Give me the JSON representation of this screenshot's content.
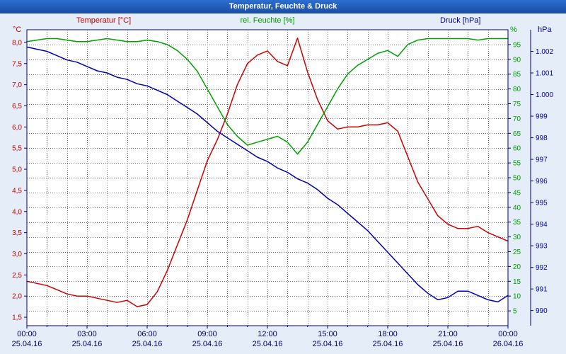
{
  "window": {
    "title": "Temperatur, Feuchte & Druck"
  },
  "legend": {
    "temperature": "Temperatur [°C]",
    "humidity": "rel. Feuchte [%]",
    "pressure": "Druck [hPa]"
  },
  "axes": {
    "temperature": {
      "unit": "°C",
      "color": "#cc0000",
      "min": 1.3,
      "max": 8.3,
      "ticks": [
        8.0,
        7.5,
        7.0,
        6.5,
        6.0,
        5.5,
        5.0,
        4.5,
        4.0,
        3.5,
        3.0,
        2.5,
        2.0,
        1.5
      ],
      "tick_labels": [
        "8,0",
        "7,5",
        "7,0",
        "6,5",
        "6,0",
        "5,5",
        "5,0",
        "4,5",
        "4,0",
        "3,5",
        "3,0",
        "2,5",
        "2,0",
        "1,5"
      ]
    },
    "humidity": {
      "unit": "%",
      "color": "#00a000",
      "min": 0,
      "max": 100,
      "ticks": [
        95,
        90,
        85,
        80,
        75,
        70,
        65,
        60,
        55,
        50,
        45,
        40,
        35,
        30,
        25,
        20,
        15,
        10,
        5
      ],
      "tick_labels": [
        "95",
        "90",
        "85",
        "80",
        "75",
        "70",
        "65",
        "60",
        "55",
        "50",
        "45",
        "40",
        "35",
        "30",
        "25",
        "20",
        "15",
        "10",
        "5"
      ]
    },
    "pressure": {
      "unit": "hPa",
      "color": "#0000b0",
      "min": 989.3,
      "max": 1003.0,
      "ticks": [
        1002,
        1001,
        1000,
        999,
        998,
        997,
        996,
        995,
        994,
        993,
        992,
        991,
        990
      ],
      "tick_labels": [
        "1.002",
        "1.001",
        "1.000",
        "999",
        "998",
        "997",
        "996",
        "995",
        "994",
        "993",
        "992",
        "991",
        "990"
      ]
    },
    "x": {
      "tick_hours": [
        0,
        3,
        6,
        9,
        12,
        15,
        18,
        21,
        24
      ],
      "tick_labels": [
        "00:00",
        "03:00",
        "06:00",
        "09:00",
        "12:00",
        "15:00",
        "18:00",
        "21:00",
        "00:00"
      ],
      "dates": [
        "25.04.16",
        "25.04.16",
        "25.04.16",
        "25.04.16",
        "25.04.16",
        "25.04.16",
        "25.04.16",
        "25.04.16",
        "26.04.16"
      ]
    }
  },
  "chart_data": {
    "type": "line",
    "title": "Temperatur, Feuchte & Druck",
    "x_start_hour": 0,
    "x_step_hours": 0.5,
    "x_range_hours": [
      0,
      24
    ],
    "grid": true,
    "series": [
      {
        "name": "Temperatur",
        "unit": "°C",
        "axis": "temperature",
        "color": "#cc0000",
        "values": [
          2.35,
          2.3,
          2.25,
          2.15,
          2.05,
          2.0,
          2.0,
          1.95,
          1.9,
          1.85,
          1.9,
          1.75,
          1.8,
          2.1,
          2.6,
          3.2,
          3.8,
          4.5,
          5.2,
          5.7,
          6.3,
          7.0,
          7.5,
          7.7,
          7.8,
          7.55,
          7.45,
          8.1,
          7.3,
          6.65,
          6.15,
          5.95,
          6.0,
          6.0,
          6.05,
          6.05,
          6.1,
          5.9,
          5.3,
          4.7,
          4.3,
          3.9,
          3.7,
          3.6,
          3.6,
          3.65,
          3.5,
          3.4,
          3.3
        ]
      },
      {
        "name": "rel. Feuchte",
        "unit": "%",
        "axis": "humidity",
        "color": "#00a000",
        "values": [
          96,
          96.5,
          97,
          97,
          96.5,
          96,
          96,
          96.5,
          97,
          96.5,
          96,
          96,
          96.5,
          96,
          95,
          93,
          90,
          86,
          80,
          74,
          68,
          64,
          61,
          62,
          63,
          64,
          62,
          58,
          62,
          68,
          74,
          80,
          85,
          88,
          90,
          92,
          93,
          91,
          95,
          96.5,
          97,
          97,
          97,
          97,
          97,
          96.5,
          97,
          97,
          97
        ]
      },
      {
        "name": "Druck",
        "unit": "hPa",
        "axis": "pressure",
        "color": "#0000b0",
        "values": [
          1002.2,
          1002.1,
          1002.0,
          1001.8,
          1001.6,
          1001.5,
          1001.3,
          1001.1,
          1001.0,
          1000.8,
          1000.7,
          1000.5,
          1000.4,
          1000.2,
          1000.0,
          999.7,
          999.4,
          999.1,
          998.7,
          998.3,
          998.0,
          997.7,
          997.4,
          997.1,
          996.9,
          996.6,
          996.4,
          996.1,
          995.9,
          995.6,
          995.2,
          994.9,
          994.5,
          994.1,
          993.7,
          993.2,
          992.7,
          992.2,
          991.7,
          991.2,
          990.8,
          990.5,
          990.6,
          990.9,
          990.9,
          990.7,
          990.5,
          990.4,
          990.7
        ]
      }
    ]
  }
}
